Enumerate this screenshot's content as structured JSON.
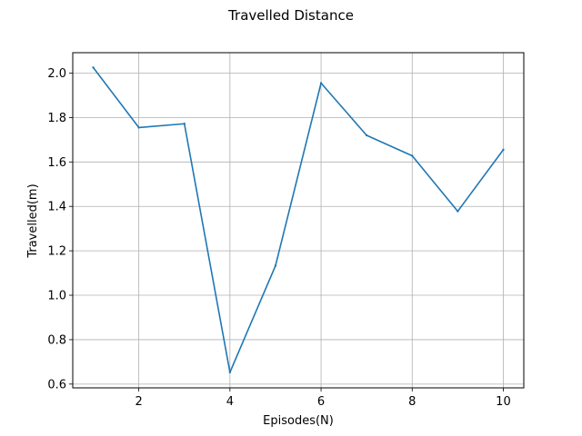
{
  "chart_data": {
    "type": "line",
    "title": "Travelled Distance",
    "xlabel": "Episodes(N)",
    "ylabel": "Travelled(m)",
    "xlim": [
      0.55,
      10.45
    ],
    "ylim": [
      0.583,
      2.092
    ],
    "xticks": [
      2,
      4,
      6,
      8,
      10
    ],
    "yticks": [
      0.6,
      0.8,
      1.0,
      1.2,
      1.4,
      1.6,
      1.8,
      2.0
    ],
    "xtick_labels": [
      "2",
      "4",
      "6",
      "8",
      "10"
    ],
    "ytick_labels": [
      "0.6",
      "0.8",
      "1.0",
      "1.2",
      "1.4",
      "1.6",
      "1.8",
      "2.0"
    ],
    "grid": true,
    "series": [
      {
        "color": "#1f77b4",
        "x": [
          1,
          2,
          3,
          4,
          5,
          6,
          7,
          8,
          9,
          10
        ],
        "values": [
          2.025,
          1.755,
          1.772,
          0.653,
          1.133,
          1.955,
          1.72,
          1.628,
          1.378,
          1.655
        ]
      }
    ]
  }
}
